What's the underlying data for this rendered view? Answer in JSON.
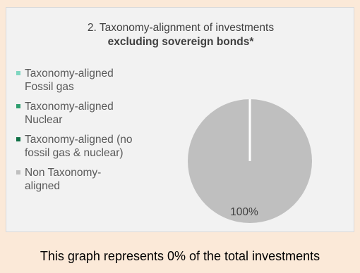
{
  "chart_data": {
    "type": "pie",
    "title_line1": "2. Taxonomy-alignment of investments",
    "title_line2": "excluding sovereign bonds*",
    "legend_placement": "left",
    "slices": [
      {
        "label": "Taxonomy-aligned Fossil gas",
        "value": 0,
        "color": "#7fd6c0"
      },
      {
        "label": "Taxonomy-aligned Nuclear",
        "value": 0,
        "color": "#2e9e6e"
      },
      {
        "label": "Taxonomy-aligned (no fossil gas & nuclear)",
        "value": 0,
        "color": "#0f7045"
      },
      {
        "label": "Non Taxonomy-aligned",
        "value": 100,
        "color": "#bfbfbf"
      }
    ],
    "data_labels": [
      "100%"
    ]
  },
  "legend": {
    "items": [
      {
        "line1": "Taxonomy-aligned",
        "line2": "Fossil gas"
      },
      {
        "line1": "Taxonomy-aligned",
        "line2": "Nuclear"
      },
      {
        "line1": "Taxonomy-aligned (no",
        "line2": "fossil gas & nuclear)"
      },
      {
        "line1": "Non Taxonomy-",
        "line2": "aligned"
      }
    ]
  },
  "footer": {
    "note": "This graph represents 0% of the total investments"
  }
}
